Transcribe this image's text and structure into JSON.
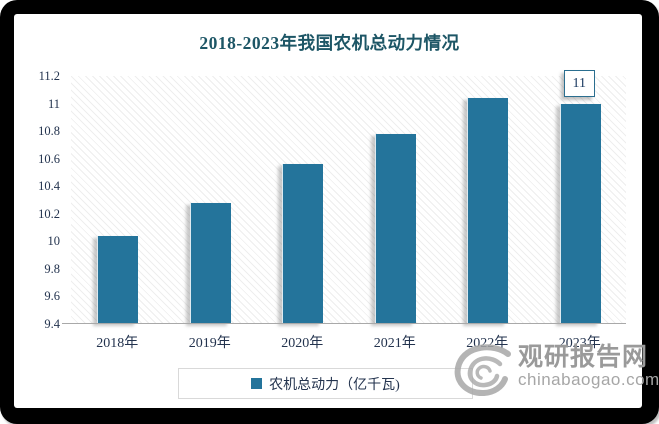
{
  "chart_data": {
    "type": "bar",
    "title": "2018-2023年我国农机总动力情况",
    "categories": [
      "2018年",
      "2019年",
      "2020年",
      "2021年",
      "2022年",
      "2023年"
    ],
    "values": [
      10.04,
      10.28,
      10.56,
      10.78,
      11.04,
      11
    ],
    "series_name": "农机总动力（亿千瓦)",
    "ylim": [
      9.4,
      11.2
    ],
    "ytick_labels": [
      "11.2",
      "11",
      "10.8",
      "10.6",
      "10.4",
      "10.2",
      "10",
      "9.8",
      "9.6",
      "9.4"
    ],
    "data_labels": [
      {
        "category": "2023年",
        "label": "11"
      }
    ],
    "grid": false,
    "legend_position": "bottom",
    "bar_color": "#24749B",
    "title_color": "#1D5666",
    "axis_label_color": "#23334E"
  },
  "legend": {
    "label": "农机总动力（亿千瓦)",
    "swatch_color": "#24749B"
  },
  "watermark": {
    "name": "观研报告网",
    "domain": "chinabaogao.com",
    "logo": "spiral-logo",
    "color": "#9a9a9a"
  }
}
